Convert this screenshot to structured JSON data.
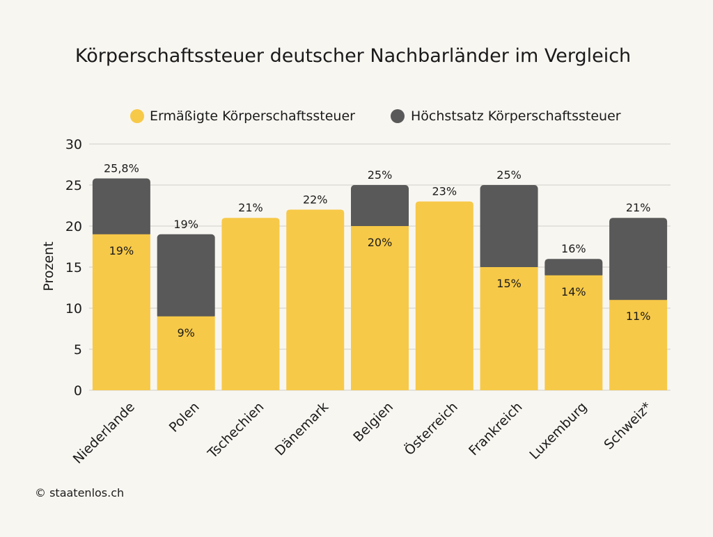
{
  "chart_data": {
    "type": "bar",
    "stacked": true,
    "title": "Körperschaftssteuer deutscher Nachbarländer im Vergleich",
    "ylabel": "Prozent",
    "xlabel": "",
    "ylim": [
      0,
      30
    ],
    "yticks": [
      0,
      5,
      10,
      15,
      20,
      25,
      30
    ],
    "grid": true,
    "legend_position": "top",
    "categories": [
      "Niederlande",
      "Polen",
      "Tschechien",
      "Dänemark",
      "Belgien",
      "Österreich",
      "Frankreich",
      "Luxemburg",
      "Schweiz*"
    ],
    "series": [
      {
        "name": "Ermäßigte Körperschaftssteuer",
        "color": "#f7c948",
        "values": [
          19,
          9,
          21,
          22,
          20,
          23,
          15,
          14,
          11
        ],
        "labels": [
          "19%",
          "9%",
          "",
          "",
          "20%",
          "",
          "15%",
          "14%",
          "11%"
        ]
      },
      {
        "name": "Höchstsatz Körperschaftssteuer",
        "color": "#595959",
        "values": [
          6.8,
          10,
          0,
          0,
          5,
          0,
          10,
          2,
          10
        ],
        "labels": [
          "",
          "",
          "",
          "",
          "",
          "",
          "",
          "",
          ""
        ]
      }
    ],
    "totals": [
      25.8,
      19,
      21,
      22,
      25,
      23,
      25,
      16,
      21
    ],
    "total_labels": [
      "25,8%",
      "19%",
      "21%",
      "22%",
      "25%",
      "23%",
      "25%",
      "16%",
      "21%"
    ]
  },
  "footer": {
    "copyright": "© staatenlos.ch"
  }
}
